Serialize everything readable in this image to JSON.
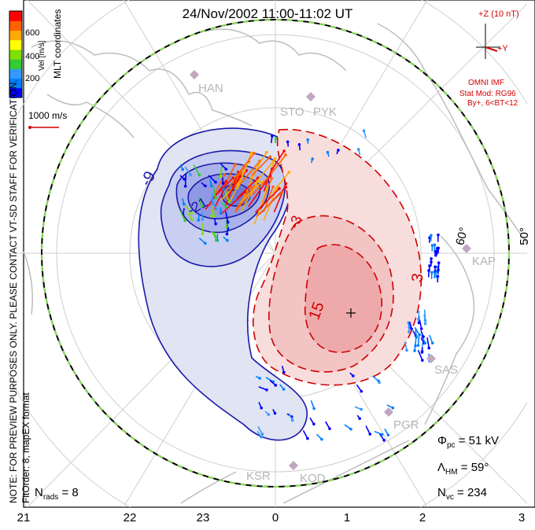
{
  "header": {
    "title": "24/Nov/2002 11:00-11:02 UT"
  },
  "colorbar": {
    "label": "Vel [m/s]",
    "ticks": [
      "600",
      "400",
      "200"
    ],
    "coords_label": "MLT coordinates",
    "colors": [
      "#0000ff",
      "#0080ff",
      "#3399ff",
      "#33cc33",
      "#80e000",
      "#ffff00",
      "#ffaa00",
      "#ff6000",
      "#ff0000"
    ]
  },
  "scale": {
    "label": "1000 m/s"
  },
  "imf": {
    "plus_z": "+Z (10 nT)",
    "plus_y": "+Y",
    "source": "OMNI IMF",
    "model1": "Stat Mod: RG96",
    "model2": "By+, 6<BT<12"
  },
  "notes": {
    "preview": "NOTE: FOR PREVIEW PURPOSES ONLY. PLEASE CONTACT VT-SD STAFF FOR VERIFICATION.",
    "fit": "FitOrder: 8, mapEX format"
  },
  "sites": [
    "HAN",
    "STO",
    "PYK",
    "KAP",
    "SAS",
    "PGR",
    "KSR",
    "KOD"
  ],
  "latitudes": [
    "60°",
    "50°"
  ],
  "contour_labels": [
    "-9",
    "-21",
    "3",
    "-3",
    "15"
  ],
  "stats": {
    "npc_label": "Φ",
    "npc_sub": "pc",
    "npc_value": "=  51  kV",
    "lhm_label": "Λ",
    "lhm_sub": "HM",
    "lhm_value": "=  59°",
    "nvc_label": "N",
    "nvc_sub": "vc",
    "nvc_value": "=  234",
    "nrads_label": "N",
    "nrads_sub": "rads",
    "nrads_value": "=  8"
  },
  "chart_data": {
    "type": "contour",
    "title": "24/Nov/2002 11:00-11:02 UT",
    "xlabel": "MLT",
    "x_ticks": [
      "21",
      "22",
      "23",
      "0",
      "1",
      "2",
      "3"
    ],
    "cross_polar_cap_potential_kV": 51,
    "heppner_maynard_boundary_deg": 59,
    "num_vectors": 234,
    "num_radars": 8,
    "contours_kV": [
      -21,
      -15,
      -9,
      -3,
      3,
      9,
      15
    ],
    "velocity_scale_m_s": [
      0,
      600
    ],
    "negative_cell": {
      "min_kV": -21,
      "color": "#2222cc"
    },
    "positive_cell": {
      "max_kV": 15,
      "color": "#cc0000"
    }
  }
}
